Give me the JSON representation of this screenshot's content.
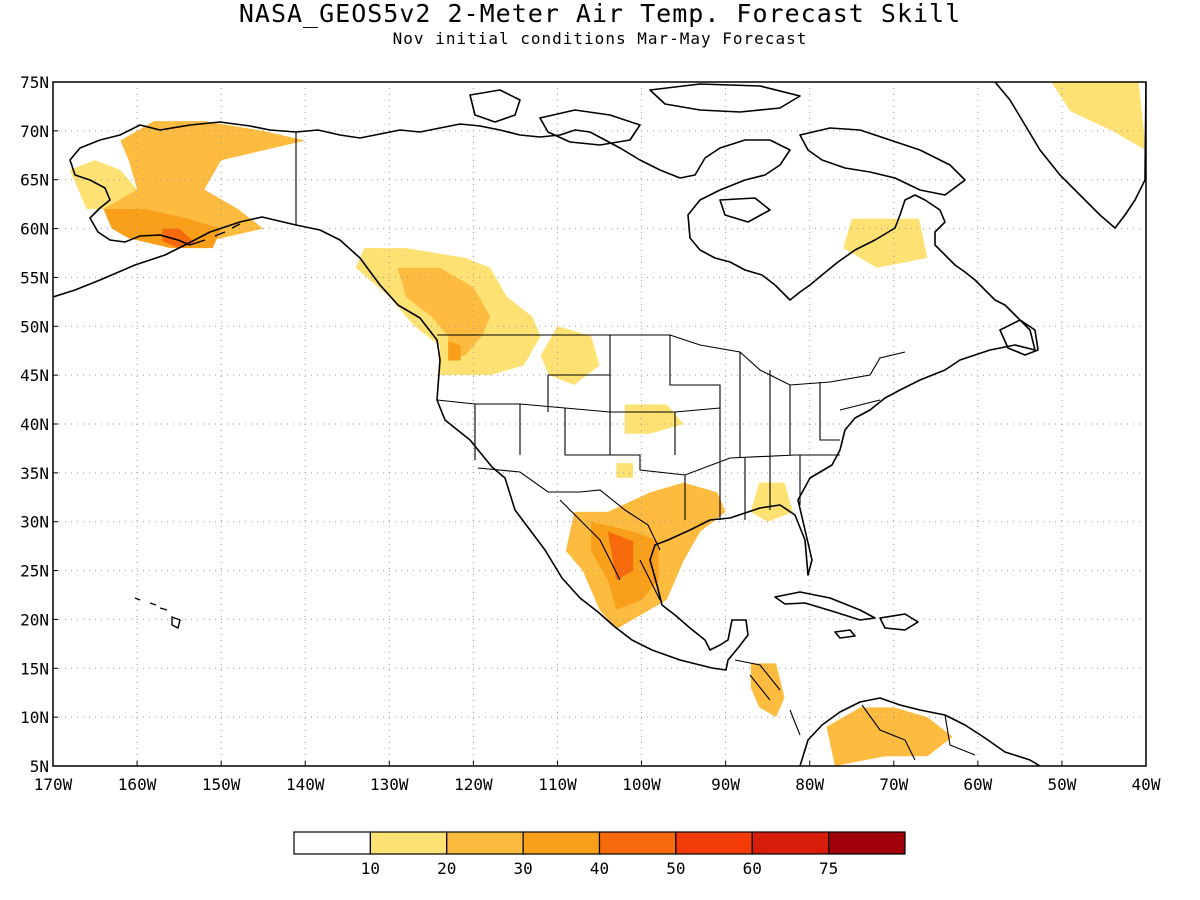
{
  "title": "NASA_GEOS5v2 2-Meter Air Temp. Forecast Skill",
  "subtitle": "Nov initial conditions  Mar-May Forecast",
  "map": {
    "lon_range": [
      -170,
      -40
    ],
    "lat_range": [
      5,
      75
    ],
    "lat_labels": [
      "75N",
      "70N",
      "65N",
      "60N",
      "55N",
      "50N",
      "45N",
      "40N",
      "35N",
      "30N",
      "25N",
      "20N",
      "15N",
      "10N",
      "5N"
    ],
    "lon_labels": [
      "170W",
      "160W",
      "150W",
      "140W",
      "130W",
      "120W",
      "110W",
      "100W",
      "90W",
      "80W",
      "70W",
      "60W",
      "50W",
      "40W"
    ]
  },
  "legend": {
    "colors": [
      "#ffffff",
      "#fee173",
      "#fdbb3f",
      "#fa9f1a",
      "#f76a0c",
      "#f23b06",
      "#d61e0a",
      "#a0000a"
    ],
    "labels": [
      "10",
      "20",
      "30",
      "40",
      "50",
      "60",
      "75"
    ]
  },
  "skill_regions": [
    {
      "name": "alaska-west",
      "level": 1,
      "lonlat": [
        [
          -168,
          66
        ],
        [
          -165,
          67
        ],
        [
          -162,
          66
        ],
        [
          -160,
          64
        ],
        [
          -163,
          62
        ],
        [
          -166,
          62
        ],
        [
          -167,
          64
        ]
      ]
    },
    {
      "name": "alaska-central",
      "level": 2,
      "lonlat": [
        [
          -162,
          69
        ],
        [
          -158,
          71
        ],
        [
          -152,
          71
        ],
        [
          -145,
          70
        ],
        [
          -140,
          69
        ],
        [
          -150,
          67
        ],
        [
          -152,
          64
        ],
        [
          -148,
          62
        ],
        [
          -145,
          60
        ],
        [
          -150,
          59
        ],
        [
          -155,
          58
        ],
        [
          -160,
          59
        ],
        [
          -163,
          60
        ],
        [
          -164,
          62
        ],
        [
          -160,
          64
        ],
        [
          -161,
          67
        ]
      ]
    },
    {
      "name": "alaska-south",
      "level": 3,
      "lonlat": [
        [
          -164,
          62
        ],
        [
          -159,
          62
        ],
        [
          -154,
          61
        ],
        [
          -150,
          60
        ],
        [
          -151,
          58
        ],
        [
          -156,
          58
        ],
        [
          -161,
          59
        ],
        [
          -163,
          60
        ]
      ]
    },
    {
      "name": "alaska-peak",
      "level": 4,
      "lonlat": [
        [
          -157,
          60
        ],
        [
          -155,
          60
        ],
        [
          -153,
          58.5
        ],
        [
          -155,
          58
        ],
        [
          -157,
          58.7
        ]
      ]
    },
    {
      "name": "bc-coast",
      "level": 1,
      "lonlat": [
        [
          -133,
          58
        ],
        [
          -128,
          58
        ],
        [
          -121,
          57
        ],
        [
          -118,
          56
        ],
        [
          -116,
          53
        ],
        [
          -113,
          51
        ],
        [
          -112,
          49
        ],
        [
          -114,
          46
        ],
        [
          -118,
          45
        ],
        [
          -121,
          45
        ],
        [
          -124,
          45
        ],
        [
          -124,
          48
        ],
        [
          -127,
          50
        ],
        [
          -130,
          53
        ],
        [
          -134,
          56
        ]
      ]
    },
    {
      "name": "bc-inner",
      "level": 2,
      "lonlat": [
        [
          -129,
          56
        ],
        [
          -124,
          56
        ],
        [
          -120,
          54
        ],
        [
          -118,
          51
        ],
        [
          -119,
          49
        ],
        [
          -121,
          47
        ],
        [
          -123,
          47
        ],
        [
          -123,
          49
        ],
        [
          -125,
          51
        ],
        [
          -128,
          53
        ]
      ]
    },
    {
      "name": "puget",
      "level": 3,
      "lonlat": [
        [
          -123,
          48.5
        ],
        [
          -121.5,
          48
        ],
        [
          -121.5,
          46.5
        ],
        [
          -123,
          46.5
        ]
      ]
    },
    {
      "name": "montana-dakota",
      "level": 1,
      "lonlat": [
        [
          -110,
          50
        ],
        [
          -106,
          49
        ],
        [
          -105,
          46
        ],
        [
          -108,
          44
        ],
        [
          -111,
          45
        ],
        [
          -112,
          47
        ]
      ]
    },
    {
      "name": "kansas",
      "level": 1,
      "lonlat": [
        [
          -102,
          42
        ],
        [
          -97,
          42
        ],
        [
          -95,
          40
        ],
        [
          -99,
          39
        ],
        [
          -102,
          39
        ]
      ]
    },
    {
      "name": "oklahoma-patch",
      "level": 1,
      "lonlat": [
        [
          -103,
          36
        ],
        [
          -101,
          36
        ],
        [
          -101,
          34.5
        ],
        [
          -103,
          34.5
        ]
      ]
    },
    {
      "name": "texas-mexico",
      "level": 2,
      "lonlat": [
        [
          -108,
          31
        ],
        [
          -104,
          31
        ],
        [
          -99,
          33
        ],
        [
          -95,
          34
        ],
        [
          -91,
          33
        ],
        [
          -90,
          31
        ],
        [
          -93,
          29
        ],
        [
          -95,
          26
        ],
        [
          -97,
          22
        ],
        [
          -101,
          20
        ],
        [
          -103,
          19
        ],
        [
          -105,
          21
        ],
        [
          -107,
          25
        ],
        [
          -109,
          27
        ]
      ]
    },
    {
      "name": "texas-inner",
      "level": 3,
      "lonlat": [
        [
          -106,
          30
        ],
        [
          -101,
          29
        ],
        [
          -98,
          28
        ],
        [
          -98,
          24
        ],
        [
          -100,
          22
        ],
        [
          -103,
          21
        ],
        [
          -104,
          24
        ],
        [
          -106,
          27
        ]
      ]
    },
    {
      "name": "mexico-peak",
      "level": 4,
      "lonlat": [
        [
          -104,
          29
        ],
        [
          -101,
          28
        ],
        [
          -101,
          25
        ],
        [
          -103,
          24
        ]
      ]
    },
    {
      "name": "southeast",
      "level": 1,
      "lonlat": [
        [
          -86,
          34
        ],
        [
          -83,
          34
        ],
        [
          -82,
          31
        ],
        [
          -85,
          30
        ],
        [
          -87,
          31
        ]
      ]
    },
    {
      "name": "labrador",
      "level": 1,
      "lonlat": [
        [
          -75,
          61
        ],
        [
          -67,
          61
        ],
        [
          -66,
          57
        ],
        [
          -72,
          56
        ],
        [
          -76,
          58
        ]
      ]
    },
    {
      "name": "central-america",
      "level": 2,
      "lonlat": [
        [
          -87,
          15.5
        ],
        [
          -84,
          15.5
        ],
        [
          -83,
          12
        ],
        [
          -84,
          10
        ],
        [
          -86,
          11
        ],
        [
          -87,
          13
        ]
      ]
    },
    {
      "name": "colombia",
      "level": 2,
      "lonlat": [
        [
          -78,
          9
        ],
        [
          -74,
          11
        ],
        [
          -70,
          11
        ],
        [
          -66,
          10
        ],
        [
          -63,
          8
        ],
        [
          -66,
          6
        ],
        [
          -71,
          6
        ],
        [
          -77,
          5
        ]
      ]
    },
    {
      "name": "greenland-east",
      "level": 1,
      "lonlat": [
        [
          -52,
          76
        ],
        [
          -41,
          76
        ],
        [
          -40,
          68
        ],
        [
          -44,
          70
        ],
        [
          -49,
          72
        ]
      ]
    }
  ]
}
